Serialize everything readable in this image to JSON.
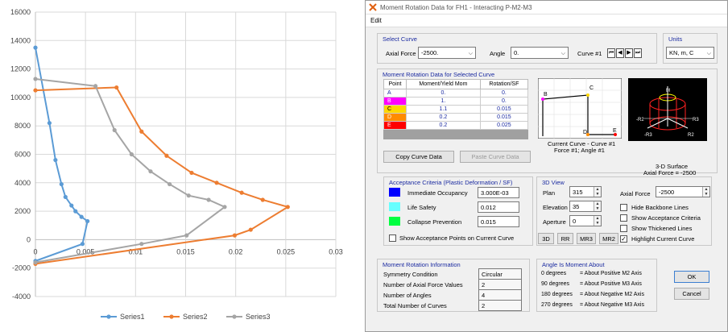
{
  "chart_data": {
    "type": "scatter",
    "title": "",
    "xlabel": "",
    "ylabel": "",
    "xlim": [
      0,
      0.03
    ],
    "ylim": [
      -4000,
      16000
    ],
    "xticks": [
      "0",
      "0.005",
      "0.01",
      "0.015",
      "0.02",
      "0.025",
      "0.03"
    ],
    "yticks": [
      "-4000",
      "-2000",
      "0",
      "2000",
      "4000",
      "6000",
      "8000",
      "10000",
      "12000",
      "14000",
      "16000"
    ],
    "grid": true,
    "legend": "bottom",
    "series": [
      {
        "name": "Series1",
        "color": "#5b9bd5",
        "points": [
          [
            0,
            13500
          ],
          [
            0.0014,
            8200
          ],
          [
            0.002,
            5600
          ],
          [
            0.0026,
            3900
          ],
          [
            0.003,
            3000
          ],
          [
            0.0036,
            2400
          ],
          [
            0.004,
            2000
          ],
          [
            0.0046,
            1600
          ],
          [
            0.0052,
            1300
          ],
          [
            0.0047,
            -300
          ],
          [
            0,
            -1500
          ]
        ]
      },
      {
        "name": "Series2",
        "color": "#ed7d31",
        "points": [
          [
            0,
            10500
          ],
          [
            0.0081,
            10700
          ],
          [
            0.0106,
            7600
          ],
          [
            0.0131,
            5900
          ],
          [
            0.0156,
            4700
          ],
          [
            0.0181,
            4000
          ],
          [
            0.0206,
            3300
          ],
          [
            0.0227,
            2800
          ],
          [
            0.0252,
            2300
          ],
          [
            0.0215,
            700
          ],
          [
            0.0199,
            300
          ],
          [
            0,
            -1700
          ]
        ]
      },
      {
        "name": "Series3",
        "color": "#a5a5a5",
        "points": [
          [
            0,
            11300
          ],
          [
            0.006,
            10800
          ],
          [
            0.0079,
            7700
          ],
          [
            0.0096,
            6000
          ],
          [
            0.0115,
            4800
          ],
          [
            0.0134,
            3900
          ],
          [
            0.0153,
            3100
          ],
          [
            0.0173,
            2800
          ],
          [
            0.0189,
            2300
          ],
          [
            0.0151,
            300
          ],
          [
            0.0106,
            -300
          ],
          [
            0,
            -1600
          ]
        ]
      }
    ]
  },
  "window": {
    "title": "Moment Rotation Data for FH1 - Interacting P-M2-M3",
    "menu_edit": "Edit"
  },
  "select_curve": {
    "title": "Select Curve",
    "axial_force_label": "Axial Force",
    "axial_force_value": "-2500.",
    "angle_label": "Angle",
    "angle_value": "0.",
    "curve_label": "Curve #1"
  },
  "units": {
    "title": "Units",
    "value": "KN, m, C"
  },
  "mr_data": {
    "title": "Moment Rotation Data for Selected Curve",
    "headers": [
      "Point",
      "Moment/Yield Mom",
      "Rotation/SF"
    ],
    "rows": [
      {
        "point": "A",
        "moment": "0.",
        "rotation": "0.",
        "color": "#ffffff"
      },
      {
        "point": "B",
        "moment": "1.",
        "rotation": "0.",
        "color": "#ff00ff"
      },
      {
        "point": "C",
        "moment": "1.1",
        "rotation": "0.015",
        "color": "#ffd700"
      },
      {
        "point": "D",
        "moment": "0.2",
        "rotation": "0.015",
        "color": "#ff8c00"
      },
      {
        "point": "E",
        "moment": "0.2",
        "rotation": "0.025",
        "color": "#ff0000"
      }
    ],
    "copy_button": "Copy Curve Data",
    "paste_button": "Paste Curve Data",
    "current_curve_line1": "Current Curve - Curve #1",
    "current_curve_line2": "Force #1;  Angle #1",
    "surface_line1": "3-D Surface",
    "surface_line2": "Axial Force = -2500",
    "plot_labels": {
      "a": "A",
      "b": "B",
      "c": "C",
      "d": "D",
      "e": "E"
    },
    "surface_labels": {
      "m": "M",
      "r2_left": "-R2",
      "r3_right": "R3",
      "r3_neg": "-R3",
      "r2_right": "R2"
    }
  },
  "acceptance": {
    "title": "Acceptance Criteria (Plastic Deformation / SF)",
    "io_label": "Immediate Occupancy",
    "io_value": "3.000E-03",
    "io_color": "#0000ff",
    "ls_label": "Life Safety",
    "ls_value": "0.012",
    "ls_color": "#66ffff",
    "cp_label": "Collapse Prevention",
    "cp_value": "0.015",
    "cp_color": "#00ff40",
    "show_points_label": "Show Acceptance Points on Current Curve"
  },
  "view3d": {
    "title": "3D View",
    "plan_label": "Plan",
    "plan_value": "315",
    "elevation_label": "Elevation",
    "elevation_value": "35",
    "aperture_label": "Aperture",
    "aperture_value": "0",
    "axial_force_label": "Axial Force",
    "axial_force_value": "-2500",
    "hide_backbone": "Hide Backbone Lines",
    "show_acceptance": "Show Acceptance Criteria",
    "show_thickened": "Show Thickened Lines",
    "highlight_current": "Highlight Current Curve",
    "btn_3d": "3D",
    "btn_rr": "RR",
    "btn_mr3": "MR3",
    "btn_mr2": "MR2"
  },
  "mr_info": {
    "title": "Moment Rotation Information",
    "symmetry_label": "Symmetry Condition",
    "symmetry_value": "Circular",
    "naf_label": "Number of Axial Force Values",
    "naf_value": "2",
    "nang_label": "Number of Angles",
    "nang_value": "4",
    "ncurves_label": "Total Number of Curves",
    "ncurves_value": "2"
  },
  "angle_info": {
    "title": "Angle Is Moment About",
    "rows": [
      {
        "deg": "0 degrees",
        "desc": "= About Positive M2 Axis"
      },
      {
        "deg": "90 degrees",
        "desc": "= About Positive M3 Axis"
      },
      {
        "deg": "180 degrees",
        "desc": "= About Negative M2 Axis"
      },
      {
        "deg": "270 degrees",
        "desc": "= About Negative M3 Axis"
      }
    ]
  },
  "buttons": {
    "ok": "OK",
    "cancel": "Cancel"
  }
}
